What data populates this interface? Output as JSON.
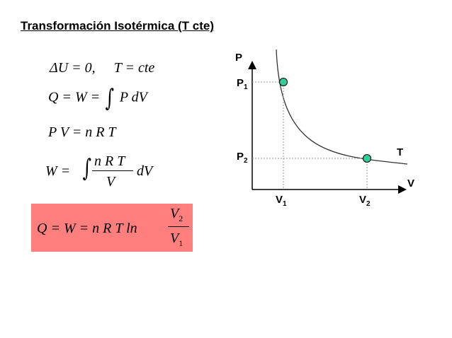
{
  "title": "Transformación Isotérmica (T cte)",
  "equations": {
    "eq1_lhs": "ΔU = 0,",
    "eq1_rhs": "T = cte",
    "eq2_lhs": "Q = W =",
    "eq2_integral": "∫",
    "eq2_rhs": "P dV",
    "eq3": "P V = n R T",
    "eq4_lhs": "W =",
    "eq4_integral": "∫",
    "eq4_num": "n R T",
    "eq4_den": "V",
    "eq4_rhs": "dV"
  },
  "result": {
    "lhs": "Q = W = n R T ln",
    "num_base": "V",
    "num_sub": "2",
    "den_base": "V",
    "den_sub": "1"
  },
  "diagram": {
    "y_axis_label": "P",
    "x_axis_label": "V",
    "curve_label": "T",
    "p1_base": "P",
    "p1_sub": "1",
    "p2_base": "P",
    "p2_sub": "2",
    "v1_base": "V",
    "v1_sub": "1",
    "v2_base": "V",
    "v2_sub": "2",
    "point_color": "#33cc99",
    "curve_color": "#333333",
    "guide_color": "#999999"
  }
}
